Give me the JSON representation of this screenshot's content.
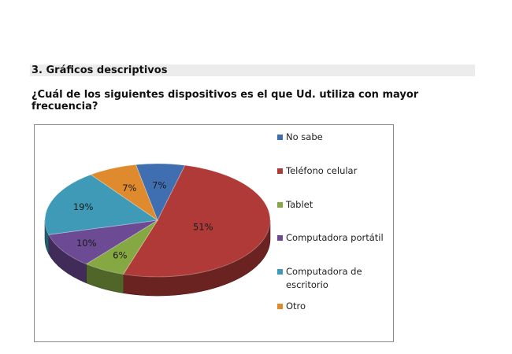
{
  "section": {
    "title": "3.  Gráficos descriptivos"
  },
  "question": {
    "text": "¿Cuál de los siguientes dispositivos es el que Ud. utiliza con mayor frecuencia?"
  },
  "chart_data": {
    "type": "pie",
    "style": "3d",
    "title": "",
    "legend_position": "right",
    "categories": [
      "No sabe",
      "Teléfono celular",
      "Tablet",
      "Computadora portátil",
      "Computadora de escritorio",
      "Otro"
    ],
    "values": [
      7,
      51,
      6,
      10,
      19,
      7
    ],
    "labels": [
      "7%",
      "51%",
      "6%",
      "10%",
      "19%",
      "7%"
    ],
    "colors": [
      "#3f6fb0",
      "#b03a37",
      "#86a843",
      "#6c4a94",
      "#3f9ab8",
      "#e08a2e"
    ]
  }
}
